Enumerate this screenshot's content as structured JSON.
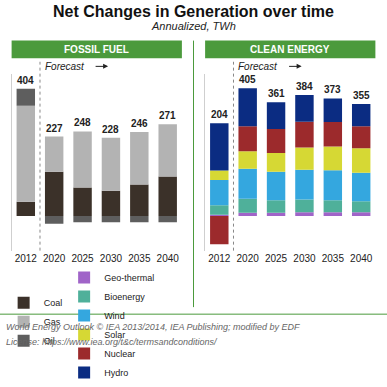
{
  "title": "Net Changes in Generation over time",
  "subtitle": "Annualized, TWh",
  "source": "World Energy Outlook © IEA 2013/2014, IEA Publishing; modified by EDF",
  "license": "License: https://www.iea.org/t&c/termsandconditions/",
  "chart_data": [
    {
      "type": "bar",
      "title": "FOSSIL FUEL",
      "stacked": true,
      "grid": false,
      "tick_labels": "x",
      "legend": "bottom",
      "annotation": "Forecast",
      "categories": [
        "2012",
        "2020",
        "2025",
        "2030",
        "2035",
        "2040"
      ],
      "ylim": [
        -110,
        450
      ],
      "totals": [
        404,
        227,
        248,
        228,
        246,
        271
      ],
      "series": [
        {
          "name": "Coal",
          "color": "#3b3129",
          "values": [
            45,
            140,
            90,
            80,
            100,
            125
          ]
        },
        {
          "name": "Gas",
          "color": "#b3b3b3",
          "values": [
            305,
            112,
            178,
            168,
            166,
            166
          ]
        },
        {
          "name": "Oil",
          "color": "#5e5e5e",
          "values": [
            54,
            -25,
            -20,
            -20,
            -20,
            -20
          ]
        }
      ]
    },
    {
      "type": "bar",
      "title": "CLEAN ENERGY",
      "stacked": true,
      "grid": false,
      "tick_labels": "x",
      "legend": "bottom",
      "annotation": "Forecast",
      "categories": [
        "2012",
        "2020",
        "2025",
        "2030",
        "2035",
        "2040"
      ],
      "ylim": [
        -110,
        450
      ],
      "totals": [
        204,
        405,
        361,
        384,
        373,
        355
      ],
      "series": [
        {
          "name": "Geo-thermal",
          "color": "#a064c8",
          "values": [
            4,
            10,
            10,
            12,
            12,
            12
          ]
        },
        {
          "name": "Bioenergy",
          "color": "#4fb09a",
          "values": [
            30,
            45,
            40,
            40,
            38,
            35
          ]
        },
        {
          "name": "Wind",
          "color": "#34a7df",
          "values": [
            80,
            95,
            90,
            95,
            95,
            90
          ]
        },
        {
          "name": "Solar",
          "color": "#d6d834",
          "values": [
            30,
            55,
            60,
            70,
            75,
            78
          ]
        },
        {
          "name": "Nuclear",
          "color": "#9c2a2c",
          "values": [
            -90,
            80,
            76,
            82,
            78,
            70
          ]
        },
        {
          "name": "Hydro",
          "color": "#0b2c82",
          "values": [
            150,
            120,
            85,
            85,
            75,
            70
          ]
        }
      ]
    }
  ]
}
